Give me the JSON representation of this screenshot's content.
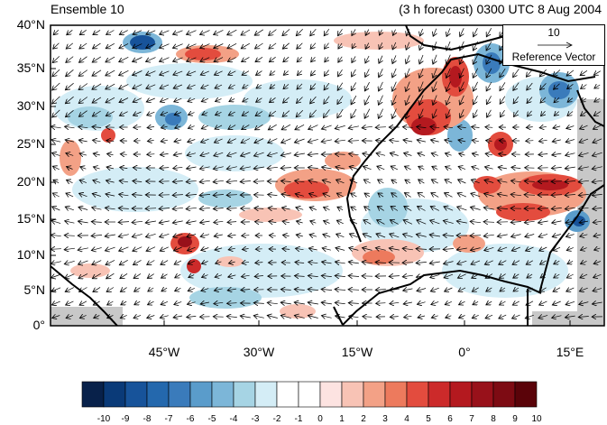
{
  "header": {
    "left_title": "Ensemble 10",
    "right_title": "(3 h forecast) 0300 UTC 8 Aug 2004"
  },
  "axes": {
    "y_labels": [
      "40°N",
      "35°N",
      "30°N",
      "25°N",
      "20°N",
      "15°N",
      "10°N",
      "5°N",
      "0°"
    ],
    "x_labels": [
      "45°W",
      "30°W",
      "15°W",
      "0°",
      "15°E"
    ]
  },
  "reference_vector": {
    "magnitude": "10",
    "label": "Reference Vector"
  },
  "colorbar": {
    "labels": [
      "-10",
      "-9",
      "-8",
      "-7",
      "-6",
      "-5",
      "-4",
      "-3",
      "-2",
      "-1",
      "0",
      "1",
      "2",
      "3",
      "4",
      "5",
      "6",
      "7",
      "8",
      "9",
      "10"
    ],
    "colors": [
      "#08214a",
      "#0a3a78",
      "#17539a",
      "#2468ad",
      "#3a7bbb",
      "#5a9ccb",
      "#7cb6d8",
      "#a6d4e4",
      "#d4edf6",
      "#ffffff",
      "#ffffff",
      "#fde3e1",
      "#f8c3b5",
      "#f3a186",
      "#ed7a5d",
      "#e34c3e",
      "#cc2a2a",
      "#b4191f",
      "#98111a",
      "#7d0b13",
      "#5a0309"
    ]
  },
  "colors": {
    "land_coast": "#000000",
    "missing": "#c8c8c8"
  }
}
